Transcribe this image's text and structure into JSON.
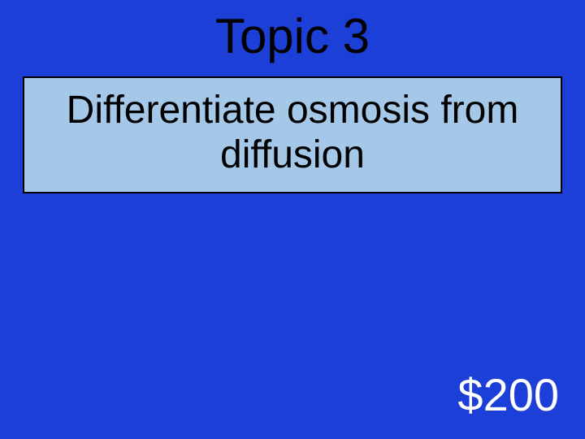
{
  "slide": {
    "title": "Topic 3",
    "question": "Differentiate osmosis from diffusion",
    "value": "$200",
    "background_color": "#1c3fd7",
    "box_background_color": "#a6c8e8",
    "box_border_color": "#000000",
    "title_color": "#000000",
    "question_color": "#000000",
    "value_color": "#ffffff",
    "title_fontsize": 60,
    "question_fontsize": 48,
    "value_fontsize": 56
  }
}
